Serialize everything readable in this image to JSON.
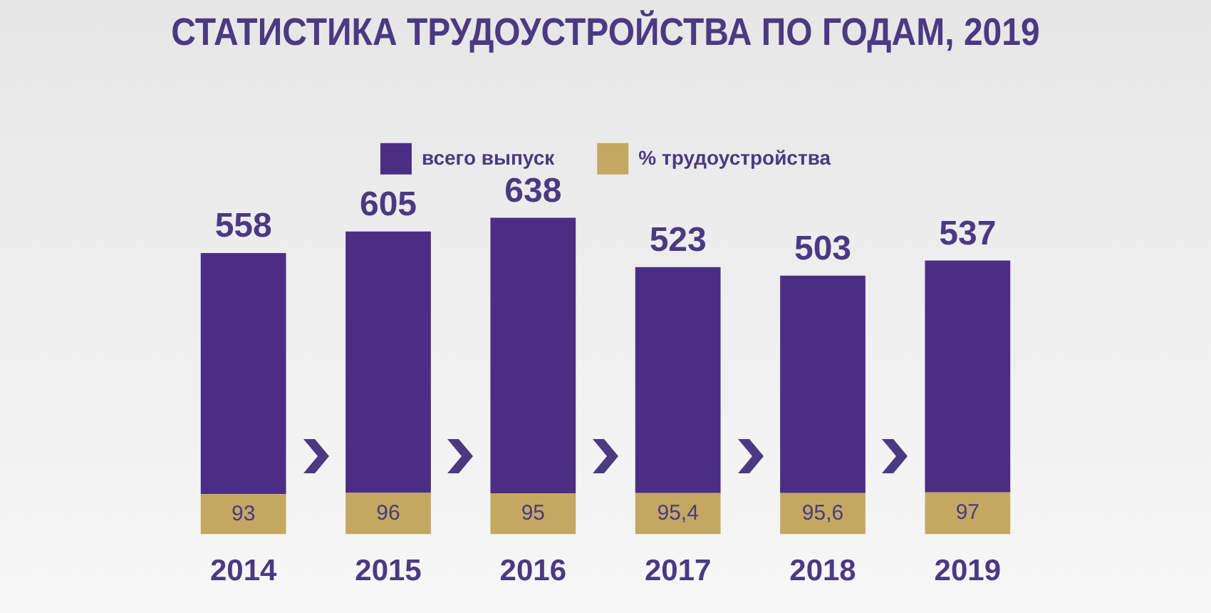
{
  "chart_data": {
    "type": "bar",
    "title": "СТАТИСТИКА ТРУДОУСТРОЙСТВА ПО ГОДАМ, 2019",
    "categories": [
      "2014",
      "2015",
      "2016",
      "2017",
      "2018",
      "2019"
    ],
    "stacked": true,
    "series": [
      {
        "name": "% трудоустройства",
        "color": "#c4a862",
        "values": [
          93,
          96,
          95,
          95.4,
          95.6,
          97
        ],
        "value_labels": [
          "93",
          "96",
          "95",
          "95,4",
          "95,6",
          "97"
        ]
      },
      {
        "name": "всего выпуск",
        "color": "#4b2e83",
        "values": [
          558,
          605,
          638,
          523,
          503,
          537
        ],
        "value_labels": [
          "558",
          "605",
          "638",
          "523",
          "503",
          "537"
        ]
      }
    ],
    "legend": "top",
    "grid": false,
    "tick_labels": "x"
  }
}
